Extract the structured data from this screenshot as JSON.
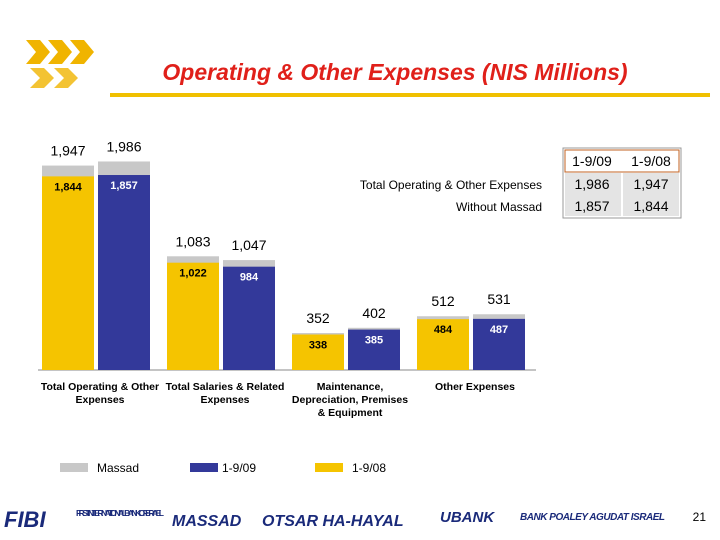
{
  "title": "Operating & Other Expenses (NIS Millions)",
  "table": {
    "header": [
      "1-9/09",
      "1-9/08"
    ],
    "rows": [
      {
        "label": "Total Operating & Other Expenses",
        "cells": [
          "1,986",
          "1,947"
        ]
      },
      {
        "label": "Without Massad",
        "cells": [
          "1,857",
          "1,844"
        ]
      }
    ]
  },
  "chart_data": {
    "type": "bar",
    "categories": [
      "Total Operating & Other Expenses",
      "Total Salaries & Related Expenses",
      "Maintenance, Depreciation, Premises & Equipment",
      "Other Expenses"
    ],
    "ylim": [
      0,
      2000
    ],
    "massad": {
      "name": "Massad",
      "color": "#c8c8c8"
    },
    "series": [
      {
        "name": "1-9/08",
        "color": "#f5c400",
        "values": [
          1844,
          1022,
          338,
          484
        ],
        "value_labels": [
          "1,844",
          "1,022",
          "338",
          "484"
        ],
        "totals": [
          1947,
          1083,
          352,
          512
        ],
        "total_labels": [
          "1,947",
          "1,083",
          "352",
          "512"
        ]
      },
      {
        "name": "1-9/09",
        "color": "#33399a",
        "values": [
          1857,
          984,
          385,
          487
        ],
        "value_labels": [
          "1,857",
          "984",
          "385",
          "487"
        ],
        "totals": [
          1986,
          1047,
          402,
          531
        ],
        "total_labels": [
          "1,986",
          "1,047",
          "402",
          "531"
        ]
      }
    ]
  },
  "page_number": "21",
  "footer": [
    "FIBI",
    "FIRST INTERNATIONAL BANK OF ISRAEL",
    "MASSAD",
    "OTSAR HA-HAYAL",
    "UBANK",
    "BANK POALEY AGUDAT ISRAEL"
  ]
}
